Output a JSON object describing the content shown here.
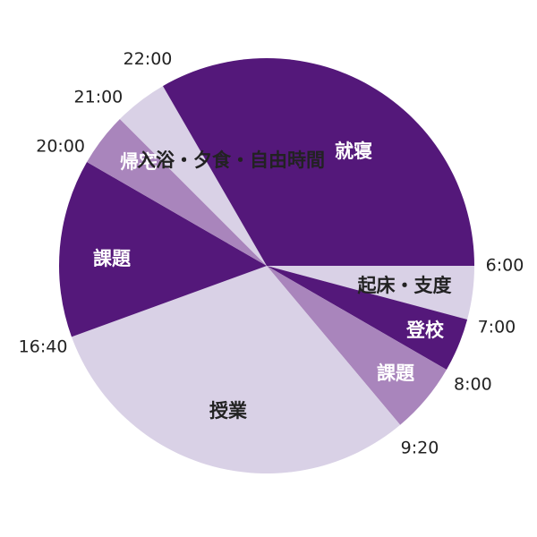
{
  "chart_data": {
    "type": "pie",
    "categories": [
      "起床・支度",
      "登校",
      "課題",
      "授業",
      "課題",
      "帰宅",
      "入浴・夕食・自由時間",
      "就寝"
    ],
    "values": [
      60,
      60,
      80,
      440,
      200,
      60,
      60,
      480
    ],
    "start_times": [
      "6:00",
      "7:00",
      "8:00",
      "9:20",
      "16:40",
      "20:00",
      "21:00",
      "22:00"
    ],
    "colors": [
      "#d9d1e6",
      "#54187a",
      "#a985bc",
      "#d9d1e6",
      "#54187a",
      "#a985bc",
      "#d9d1e6",
      "#54187a"
    ],
    "label_colors": [
      "#222222",
      "#ffffff",
      "#ffffff",
      "#222222",
      "#ffffff",
      "#ffffff",
      "#222222",
      "#ffffff"
    ]
  }
}
